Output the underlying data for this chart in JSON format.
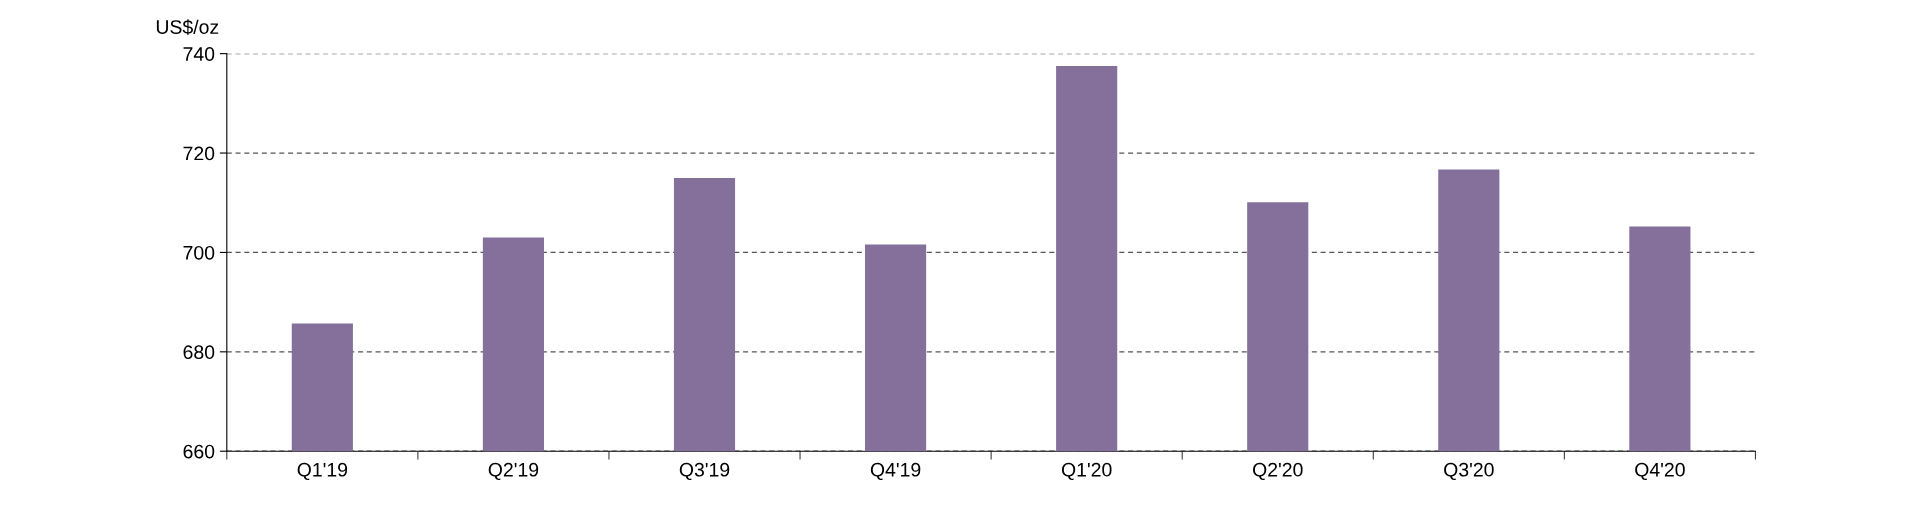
{
  "chart_data": {
    "type": "bar",
    "ylabel": "US$/oz",
    "categories": [
      "Q1'19",
      "Q2'19",
      "Q3'19",
      "Q4'19",
      "Q1'20",
      "Q2'20",
      "Q3'20",
      "Q4'20"
    ],
    "values": [
      685.7,
      703.0,
      715.0,
      701.6,
      737.5,
      710.1,
      716.7,
      705.2
    ],
    "color": "#84709a",
    "ylim": [
      660,
      740
    ],
    "yticks": [
      660,
      680,
      700,
      720,
      740
    ],
    "grid": "y"
  }
}
